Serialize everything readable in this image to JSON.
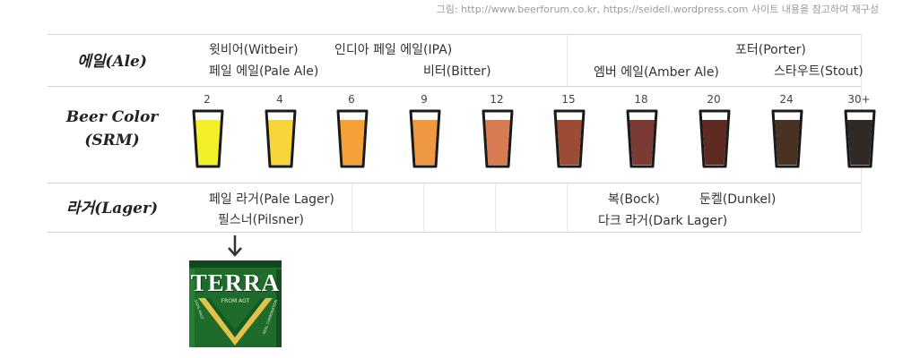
{
  "credit": "그림: http://www.beerforum.co.kr, https://seidell.wordpress.com 사이트 내용을 참고하여 재구성",
  "rows": {
    "ale": "에일(Ale)",
    "color_line1": "Beer Color",
    "color_line2": "(SRM)",
    "lager": "라거(Lager)"
  },
  "ale_styles": [
    "윗비어(Witbeir)",
    "페일 에일(Pale Ale)",
    "인디아 페일 에일(IPA)",
    "비터(Bitter)",
    "포터(Porter)",
    "엠버 에일(Amber Ale)",
    "스타우트(Stout)"
  ],
  "lager_styles": [
    "페일 라거(Pale Lager)",
    "필스너(Pilsner)",
    "복(Bock)",
    "둔켈(Dunkel)",
    "다크 라거(Dark Lager)"
  ],
  "srm_scale": [
    {
      "label": "2",
      "color": "#f3f02a"
    },
    {
      "label": "4",
      "color": "#f7d63c"
    },
    {
      "label": "6",
      "color": "#f5a13a"
    },
    {
      "label": "9",
      "color": "#ee9840"
    },
    {
      "label": "12",
      "color": "#d77b52"
    },
    {
      "label": "15",
      "color": "#9c4b35"
    },
    {
      "label": "18",
      "color": "#7b3a34"
    },
    {
      "label": "20",
      "color": "#5f2a22"
    },
    {
      "label": "24",
      "color": "#4a3222"
    },
    {
      "label": "30+",
      "color": "#2f2a26"
    }
  ],
  "example": {
    "arrow_icon": "down-arrow-icon",
    "brand": "TERRA",
    "sub": "FROM AGT",
    "side_left": "100% MALT",
    "side_right": "REAL CARBONATION"
  },
  "colors": {
    "can_green": "#1e6b2c",
    "can_gold": "#e3c24a"
  }
}
